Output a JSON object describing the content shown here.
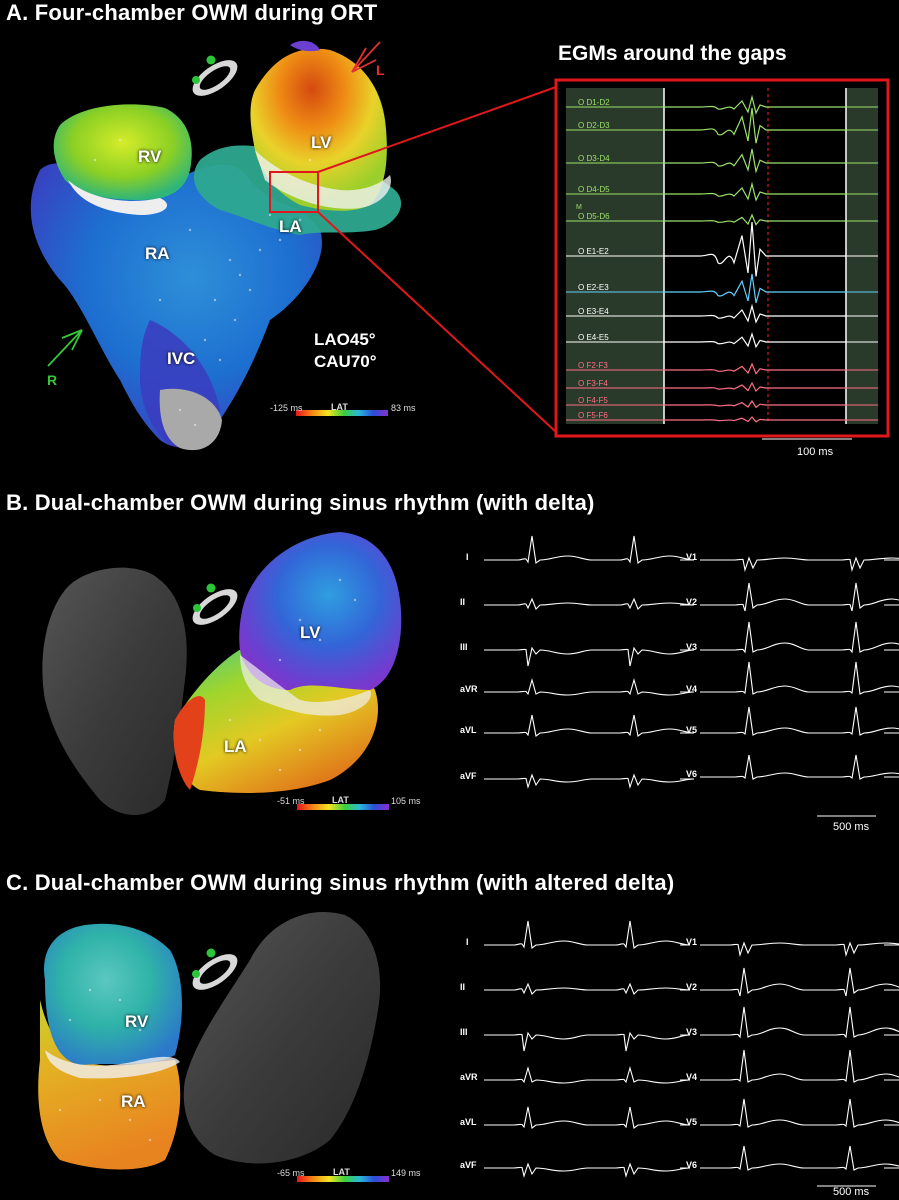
{
  "panels": {
    "a": {
      "title": "A. Four-chamber OWM during ORT",
      "chambers": [
        "RV",
        "LV",
        "LA",
        "RA",
        "IVC"
      ],
      "view": [
        "LAO45°",
        "CAU70°"
      ],
      "arrows": {
        "left": "L",
        "right": "R"
      },
      "lat": {
        "label": "LAT",
        "min": "-125 ms",
        "max": "83 ms"
      },
      "egm_title": "EGMs around the gaps",
      "egm_channels": [
        {
          "label": "O D1-D2",
          "color": "#9be36a"
        },
        {
          "label": "O D2-D3",
          "color": "#9be36a"
        },
        {
          "label": "O D3-D4",
          "color": "#9be36a"
        },
        {
          "label": "O D4-D5",
          "color": "#9be36a"
        },
        {
          "label": "O D5-D6",
          "color": "#9be36a"
        },
        {
          "label": "O E1-E2",
          "color": "#ffffff"
        },
        {
          "label": "O E2-E3",
          "color": "#ffffff"
        },
        {
          "label": "O E3-E4",
          "color": "#ffffff"
        },
        {
          "label": "O E4-E5",
          "color": "#ffffff"
        },
        {
          "label": "O F2-F3",
          "color": "#ff6f84"
        },
        {
          "label": "O F3-F4",
          "color": "#ff6f84"
        },
        {
          "label": "O F4-F5",
          "color": "#ff6f84"
        },
        {
          "label": "O F5-F6",
          "color": "#ff6f84"
        }
      ],
      "egm_marker": "M",
      "scale": "100 ms"
    },
    "b": {
      "title": "B. Dual-chamber OWM during sinus rhythm (with delta)",
      "chambers": [
        "LV",
        "LA"
      ],
      "lat": {
        "label": "LAT",
        "min": "-51 ms",
        "max": "105 ms"
      },
      "leads_left": [
        "I",
        "II",
        "III",
        "aVR",
        "aVL",
        "aVF"
      ],
      "leads_right": [
        "V1",
        "V2",
        "V3",
        "V4",
        "V5",
        "V6"
      ],
      "scale": "500 ms"
    },
    "c": {
      "title": "C. Dual-chamber OWM during sinus rhythm (with altered delta)",
      "chambers": [
        "RV",
        "RA"
      ],
      "lat": {
        "label": "LAT",
        "min": "-65 ms",
        "max": "149 ms"
      },
      "leads_left": [
        "I",
        "II",
        "III",
        "aVR",
        "aVL",
        "aVF"
      ],
      "leads_right": [
        "V1",
        "V2",
        "V3",
        "V4",
        "V5",
        "V6"
      ],
      "scale": "500 ms"
    }
  },
  "colors": {
    "highlight": "#e0181b",
    "arrow_left": "#e53030",
    "arrow_right": "#35c83a",
    "cursor": "#d21e1e",
    "egm_background": "#2a3a2a"
  }
}
